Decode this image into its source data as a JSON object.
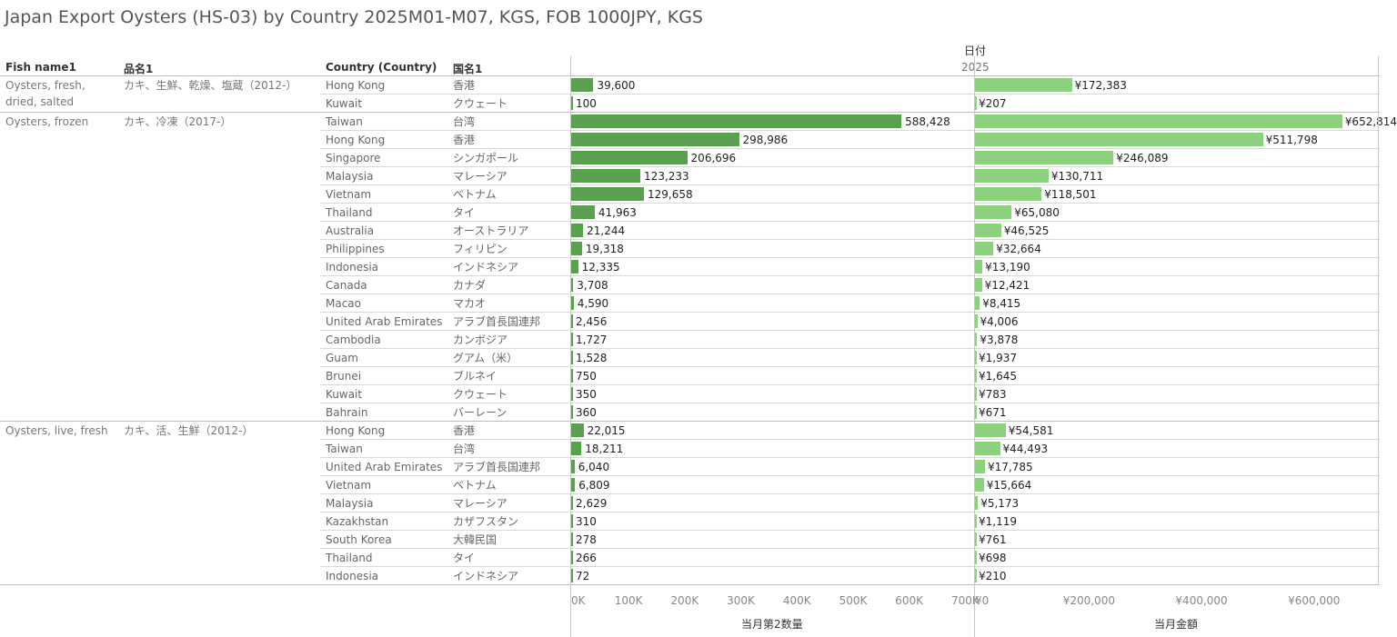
{
  "title": "Japan Export Oysters (HS-03) by Country 2025M01-M07, KGS, FOB 1000JPY, KGS",
  "headers": {
    "fish_name": "Fish name1",
    "hinmei": "品名1",
    "country": "Country (Country)",
    "kokumei": "国名1",
    "date_label": "日付",
    "year": "2025"
  },
  "axes": {
    "quantity_title": "当月第2数量",
    "amount_title": "当月金額",
    "quantity_ticks": [
      "0K",
      "100K",
      "200K",
      "300K",
      "400K",
      "500K",
      "600K",
      "700K"
    ],
    "amount_ticks": [
      "¥0",
      "¥200,000",
      "¥400,000",
      "¥600,000"
    ]
  },
  "colors": {
    "quantity_bar": "#59a14f",
    "amount_bar": "#8cd17d"
  },
  "chart_data": {
    "type": "bar",
    "orientation": "horizontal",
    "series_names": [
      "当月第2数量",
      "当月金額"
    ],
    "quantity_range": [
      0,
      700000
    ],
    "amount_range": [
      0,
      700000
    ],
    "groups": [
      {
        "fish_name": "Oysters, fresh, dried, salted",
        "hinmei": "カキ、生鮮、乾燥、塩蔵（2012-）",
        "rows": [
          {
            "country": "Hong Kong",
            "kokumei": "香港",
            "qty": 39600,
            "qty_label": "39,600",
            "amt": 172383,
            "amt_label": "¥172,383"
          },
          {
            "country": "Kuwait",
            "kokumei": "クウェート",
            "qty": 100,
            "qty_label": "100",
            "amt": 207,
            "amt_label": "¥207"
          }
        ]
      },
      {
        "fish_name": "Oysters, frozen",
        "hinmei": "カキ、冷凍（2017-）",
        "rows": [
          {
            "country": "Taiwan",
            "kokumei": "台湾",
            "qty": 588428,
            "qty_label": "588,428",
            "amt": 652814,
            "amt_label": "¥652,814"
          },
          {
            "country": "Hong Kong",
            "kokumei": "香港",
            "qty": 298986,
            "qty_label": "298,986",
            "amt": 511798,
            "amt_label": "¥511,798"
          },
          {
            "country": "Singapore",
            "kokumei": "シンガポール",
            "qty": 206696,
            "qty_label": "206,696",
            "amt": 246089,
            "amt_label": "¥246,089"
          },
          {
            "country": "Malaysia",
            "kokumei": "マレーシア",
            "qty": 123233,
            "qty_label": "123,233",
            "amt": 130711,
            "amt_label": "¥130,711"
          },
          {
            "country": "Vietnam",
            "kokumei": "ベトナム",
            "qty": 129658,
            "qty_label": "129,658",
            "amt": 118501,
            "amt_label": "¥118,501"
          },
          {
            "country": "Thailand",
            "kokumei": "タイ",
            "qty": 41963,
            "qty_label": "41,963",
            "amt": 65080,
            "amt_label": "¥65,080"
          },
          {
            "country": "Australia",
            "kokumei": "オーストラリア",
            "qty": 21244,
            "qty_label": "21,244",
            "amt": 46525,
            "amt_label": "¥46,525"
          },
          {
            "country": "Philippines",
            "kokumei": "フィリピン",
            "qty": 19318,
            "qty_label": "19,318",
            "amt": 32664,
            "amt_label": "¥32,664"
          },
          {
            "country": "Indonesia",
            "kokumei": "インドネシア",
            "qty": 12335,
            "qty_label": "12,335",
            "amt": 13190,
            "amt_label": "¥13,190"
          },
          {
            "country": "Canada",
            "kokumei": "カナダ",
            "qty": 3708,
            "qty_label": "3,708",
            "amt": 12421,
            "amt_label": "¥12,421"
          },
          {
            "country": "Macao",
            "kokumei": "マカオ",
            "qty": 4590,
            "qty_label": "4,590",
            "amt": 8415,
            "amt_label": "¥8,415"
          },
          {
            "country": "United Arab Emirates",
            "kokumei": "アラブ首長国連邦",
            "qty": 2456,
            "qty_label": "2,456",
            "amt": 4006,
            "amt_label": "¥4,006"
          },
          {
            "country": "Cambodia",
            "kokumei": "カンボジア",
            "qty": 1727,
            "qty_label": "1,727",
            "amt": 3878,
            "amt_label": "¥3,878"
          },
          {
            "country": "Guam",
            "kokumei": "グアム（米）",
            "qty": 1528,
            "qty_label": "1,528",
            "amt": 1937,
            "amt_label": "¥1,937"
          },
          {
            "country": "Brunei",
            "kokumei": "ブルネイ",
            "qty": 750,
            "qty_label": "750",
            "amt": 1645,
            "amt_label": "¥1,645"
          },
          {
            "country": "Kuwait",
            "kokumei": "クウェート",
            "qty": 350,
            "qty_label": "350",
            "amt": 783,
            "amt_label": "¥783"
          },
          {
            "country": "Bahrain",
            "kokumei": "バーレーン",
            "qty": 360,
            "qty_label": "360",
            "amt": 671,
            "amt_label": "¥671"
          }
        ]
      },
      {
        "fish_name": "Oysters, live, fresh",
        "hinmei": "カキ、活、生鮮（2012-）",
        "rows": [
          {
            "country": "Hong Kong",
            "kokumei": "香港",
            "qty": 22015,
            "qty_label": "22,015",
            "amt": 54581,
            "amt_label": "¥54,581"
          },
          {
            "country": "Taiwan",
            "kokumei": "台湾",
            "qty": 18211,
            "qty_label": "18,211",
            "amt": 44493,
            "amt_label": "¥44,493"
          },
          {
            "country": "United Arab Emirates",
            "kokumei": "アラブ首長国連邦",
            "qty": 6040,
            "qty_label": "6,040",
            "amt": 17785,
            "amt_label": "¥17,785"
          },
          {
            "country": "Vietnam",
            "kokumei": "ベトナム",
            "qty": 6809,
            "qty_label": "6,809",
            "amt": 15664,
            "amt_label": "¥15,664"
          },
          {
            "country": "Malaysia",
            "kokumei": "マレーシア",
            "qty": 2629,
            "qty_label": "2,629",
            "amt": 5173,
            "amt_label": "¥5,173"
          },
          {
            "country": "Kazakhstan",
            "kokumei": "カザフスタン",
            "qty": 310,
            "qty_label": "310",
            "amt": 1119,
            "amt_label": "¥1,119"
          },
          {
            "country": "South Korea",
            "kokumei": "大韓民国",
            "qty": 278,
            "qty_label": "278",
            "amt": 761,
            "amt_label": "¥761"
          },
          {
            "country": "Thailand",
            "kokumei": "タイ",
            "qty": 266,
            "qty_label": "266",
            "amt": 698,
            "amt_label": "¥698"
          },
          {
            "country": "Indonesia",
            "kokumei": "インドネシア",
            "qty": 72,
            "qty_label": "72",
            "amt": 210,
            "amt_label": "¥210"
          }
        ]
      }
    ]
  }
}
